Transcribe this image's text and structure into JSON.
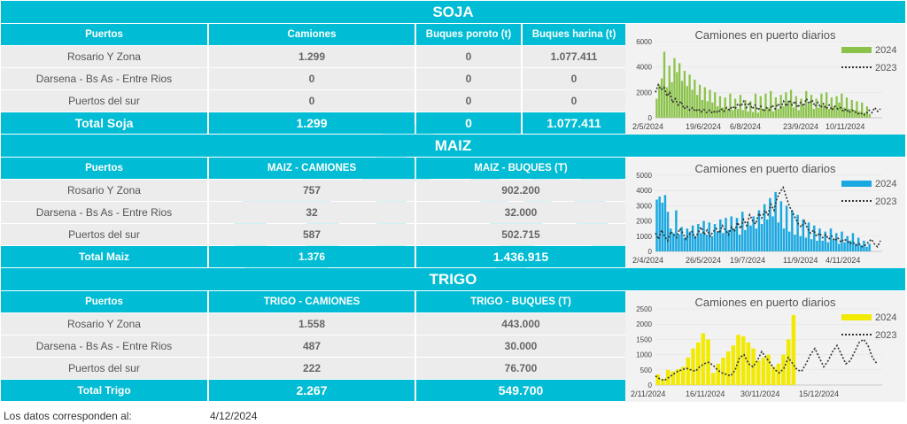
{
  "soja": {
    "title": "SOJA",
    "headers": [
      "Puertos",
      "Camiones",
      "Buques poroto (t)",
      "Buques harina (t)"
    ],
    "rows": [
      [
        "Rosario Y Zona",
        "1.299",
        "0",
        "1.077.411"
      ],
      [
        "Darsena - Bs As - Entre Rios",
        "0",
        "0",
        "0"
      ],
      [
        "Puertos del sur",
        "0",
        "0",
        "0"
      ]
    ],
    "total": [
      "Total Soja",
      "1.299",
      "0",
      "1.077.411"
    ]
  },
  "maiz": {
    "title": "MAIZ",
    "headers": [
      "Puertos",
      "MAIZ - CAMIONES",
      "MAIZ - BUQUES (T)"
    ],
    "rows": [
      [
        "Rosario Y Zona",
        "757",
        "902.200"
      ],
      [
        "Darsena - Bs As - Entre Rios",
        "32",
        "32.000"
      ],
      [
        "Puertos del sur",
        "587",
        "502.715"
      ]
    ],
    "total": [
      "Total Maiz",
      "1.376",
      "1.436.915"
    ]
  },
  "trigo": {
    "title": "TRIGO",
    "headers": [
      "Puertos",
      "TRIGO - CAMIONES",
      "TRIGO - BUQUES (T)"
    ],
    "rows": [
      [
        "Rosario Y Zona",
        "1.558",
        "443.000"
      ],
      [
        "Darsena - Bs As - Entre Rios",
        "487",
        "30.000"
      ],
      [
        "Puertos del sur",
        "222",
        "76.700"
      ]
    ],
    "total": [
      "Total Trigo",
      "2.267",
      "549.700"
    ]
  },
  "footer": {
    "label": "Los datos corresponden al:",
    "date": "4/12/2024"
  },
  "colors": {
    "accent": "#00bcd4",
    "soja_bar": "#8bc34a",
    "maiz_bar": "#1aa8e0",
    "trigo_bar": "#f2ea00",
    "line_2023": "#333333"
  },
  "chart_data": [
    {
      "type": "bar",
      "title": "Camiones en puerto diarios",
      "x_tick_labels": [
        "2/5/2024",
        "19/6/2024",
        "6/8/2024",
        "23/9/2024",
        "10/11/2024"
      ],
      "y_tick_labels": [
        "0",
        "2000",
        "4000",
        "6000"
      ],
      "ylim": [
        0,
        6000
      ],
      "legend_position": "top-right",
      "series": [
        {
          "name": "2024",
          "kind": "bar",
          "color": "#8bc34a",
          "values": [
            1500,
            2600,
            3100,
            5200,
            2400,
            4100,
            2800,
            4700,
            3600,
            4300,
            2900,
            3700,
            2500,
            3400,
            2200,
            3000,
            1800,
            2600,
            1400,
            2400,
            1300,
            2200,
            1200,
            2000,
            900,
            1700,
            800,
            1600,
            700,
            1900,
            600,
            1500,
            700,
            1800,
            600,
            1400,
            500,
            1300,
            450,
            1900,
            400,
            1700,
            600,
            1900,
            800,
            2100,
            500,
            1600,
            700,
            1800,
            900,
            2000,
            1200,
            2200,
            800,
            1700,
            600,
            1500,
            900,
            2100,
            1100,
            1800,
            700,
            1500,
            800,
            1900,
            1000,
            2000,
            700,
            1600,
            900,
            1700,
            1200,
            1900,
            800,
            1600,
            700,
            1400,
            600,
            1300,
            500,
            1200,
            400,
            900,
            300
          ]
        },
        {
          "name": "2023",
          "kind": "line",
          "color": "#333333",
          "values": [
            2000,
            2600,
            2200,
            2400,
            1700,
            2000,
            1200,
            1500,
            1000,
            1300,
            700,
            900,
            600,
            800,
            500,
            700,
            450,
            650,
            400,
            600,
            350,
            550,
            400,
            700,
            500,
            800,
            600,
            900,
            700,
            1100,
            900,
            1300,
            800,
            1200,
            700,
            1000,
            600,
            900,
            500,
            800,
            600,
            1000,
            700,
            1100,
            800,
            1300,
            900,
            1400,
            1000,
            1300,
            800,
            1200,
            900,
            1500,
            1100,
            1400,
            900,
            1200,
            800,
            1100,
            700,
            1000,
            600,
            900,
            700,
            800,
            500,
            700,
            400,
            600,
            500,
            300,
            400,
            200,
            300,
            600,
            400,
            800,
            500,
            700
          ]
        }
      ]
    },
    {
      "type": "bar",
      "title": "Camiones en puerto diarios",
      "x_tick_labels": [
        "2/4/2024",
        "26/5/2024",
        "19/7/2024",
        "11/9/2024",
        "4/11/2024"
      ],
      "y_tick_labels": [
        "0",
        "1000",
        "2000",
        "3000",
        "4000",
        "5000"
      ],
      "ylim": [
        0,
        5000
      ],
      "legend_position": "top-right",
      "series": [
        {
          "name": "2024",
          "kind": "bar",
          "color": "#1aa8e0",
          "values": [
            3400,
            3600,
            3200,
            3700,
            2600,
            1500,
            1200,
            2700,
            1100,
            1600,
            900,
            1500,
            1300,
            1700,
            1000,
            1800,
            1200,
            2000,
            1100,
            1900,
            1000,
            1800,
            1300,
            2100,
            1200,
            2200,
            1400,
            2300,
            1500,
            2200,
            1100,
            2600,
            1400,
            1900,
            1700,
            2300,
            1500,
            2700,
            1800,
            3100,
            2100,
            3500,
            2300,
            3900,
            1900,
            3300,
            1500,
            3000,
            1300,
            2700,
            1100,
            2400,
            1000,
            2100,
            900,
            1900,
            800,
            1700,
            700,
            1500,
            700,
            1300,
            600,
            1500,
            800,
            1200,
            500,
            1300,
            600,
            1000,
            700,
            1200,
            500,
            900,
            400,
            700,
            300,
            500
          ]
        },
        {
          "name": "2023",
          "kind": "line",
          "color": "#333333",
          "values": [
            1200,
            800,
            1400,
            1000,
            700,
            1300,
            1100,
            900,
            1500,
            1200,
            800,
            1100,
            1300,
            900,
            1200,
            1600,
            1100,
            1400,
            1000,
            1300,
            1500,
            1200,
            1700,
            1400,
            1100,
            1600,
            1300,
            1900,
            1500,
            2100,
            1700,
            2400,
            2000,
            1800,
            2500,
            2200,
            2700,
            2400,
            3100,
            2700,
            3500,
            3900,
            4200,
            3600,
            3000,
            2600,
            2200,
            1800,
            1600,
            2000,
            1500,
            1200,
            1400,
            1000,
            1200,
            900,
            1100,
            800,
            1000,
            700,
            900,
            600,
            800,
            700,
            500,
            600,
            400,
            500,
            300,
            400,
            600,
            800,
            500,
            300,
            700
          ]
        }
      ]
    },
    {
      "type": "bar",
      "title": "Camiones en puerto diarios",
      "x_tick_labels": [
        "2/11/2024",
        "16/11/2024",
        "30/11/2024",
        "15/12/2024"
      ],
      "y_tick_labels": [
        "0",
        "500",
        "1000",
        "1500",
        "2000",
        "2500"
      ],
      "ylim": [
        0,
        2500
      ],
      "legend_position": "top-right",
      "series": [
        {
          "name": "2024",
          "kind": "bar",
          "color": "#f2ea00",
          "values": [
            350,
            200,
            500,
            450,
            520,
            600,
            900,
            1200,
            1400,
            1700,
            1500,
            400,
            700,
            900,
            1100,
            1300,
            1650,
            1600,
            1400,
            1200,
            800,
            900,
            1000,
            600,
            700,
            1000,
            1500,
            2300
          ]
        },
        {
          "name": "2023",
          "kind": "line",
          "color": "#333333",
          "values": [
            300,
            200,
            150,
            250,
            350,
            450,
            500,
            550,
            500,
            450,
            600,
            700,
            750,
            650,
            500,
            400,
            350,
            300,
            500,
            900,
            1000,
            700,
            600,
            800,
            1100,
            900,
            700,
            500,
            400,
            550,
            900,
            700,
            500,
            450,
            700,
            1000,
            1200,
            900,
            600,
            800,
            1100,
            1300,
            1000,
            700,
            800,
            1100,
            1400,
            1500,
            1300,
            900,
            700
          ]
        }
      ]
    }
  ]
}
